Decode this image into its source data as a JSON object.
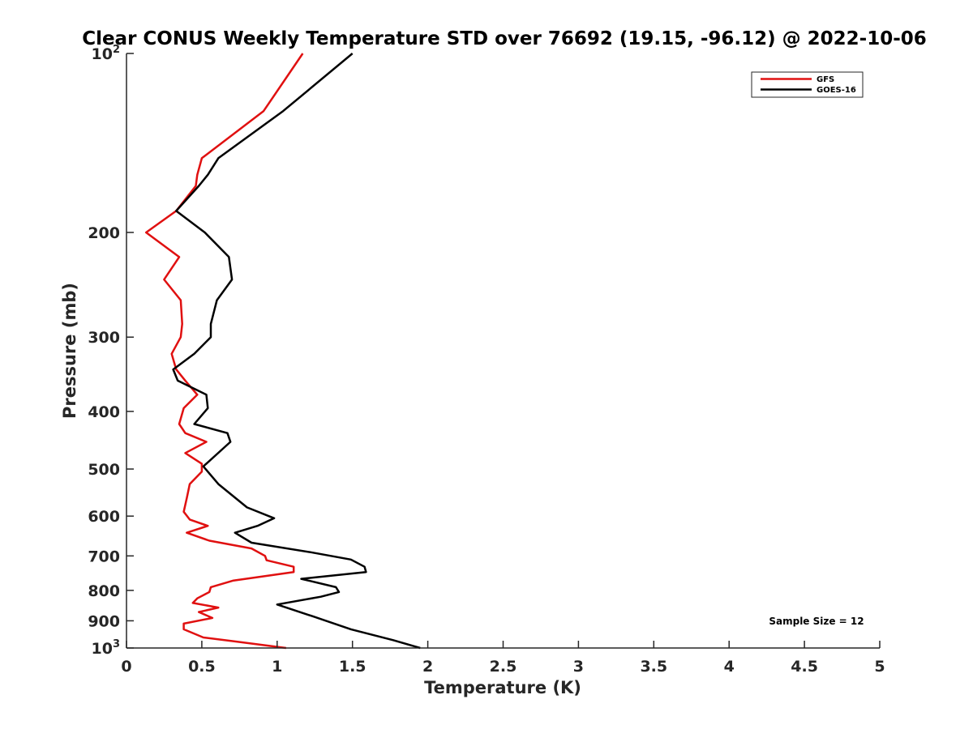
{
  "chart_data": {
    "type": "line",
    "title": "Clear CONUS Weekly Temperature STD over 76692 (19.15, -96.12) @ 2022-10-06",
    "xlabel": "Temperature (K)",
    "ylabel": "Pressure (mb)",
    "xlim": [
      0,
      5
    ],
    "ylim": [
      100,
      1000
    ],
    "yscale": "log",
    "y_reversed": true,
    "grid": false,
    "legend_position": "top-right",
    "x_ticks": [
      {
        "value": 0,
        "label": "0"
      },
      {
        "value": 0.5,
        "label": "0.5"
      },
      {
        "value": 1,
        "label": "1"
      },
      {
        "value": 1.5,
        "label": "1.5"
      },
      {
        "value": 2,
        "label": "2"
      },
      {
        "value": 2.5,
        "label": "2.5"
      },
      {
        "value": 3,
        "label": "3"
      },
      {
        "value": 3.5,
        "label": "3.5"
      },
      {
        "value": 4,
        "label": "4"
      },
      {
        "value": 4.5,
        "label": "4.5"
      },
      {
        "value": 5,
        "label": "5"
      }
    ],
    "y_ticks": [
      {
        "value": 100,
        "base": "10",
        "exp": "2"
      },
      {
        "value": 200,
        "base": "200",
        "exp": ""
      },
      {
        "value": 300,
        "base": "300",
        "exp": ""
      },
      {
        "value": 400,
        "base": "400",
        "exp": ""
      },
      {
        "value": 500,
        "base": "500",
        "exp": ""
      },
      {
        "value": 600,
        "base": "600",
        "exp": ""
      },
      {
        "value": 700,
        "base": "700",
        "exp": ""
      },
      {
        "value": 800,
        "base": "800",
        "exp": ""
      },
      {
        "value": 900,
        "base": "900",
        "exp": ""
      },
      {
        "value": 1000,
        "base": "10",
        "exp": "3"
      }
    ],
    "annotation": "Sample Size = 12",
    "series": [
      {
        "name": "GFS",
        "color": "#e01010",
        "points": [
          [
            1.17,
            100
          ],
          [
            0.91,
            125
          ],
          [
            0.5,
            150
          ],
          [
            0.47,
            160
          ],
          [
            0.46,
            167
          ],
          [
            0.33,
            184
          ],
          [
            0.13,
            200
          ],
          [
            0.35,
            220
          ],
          [
            0.25,
            240
          ],
          [
            0.36,
            260
          ],
          [
            0.37,
            285
          ],
          [
            0.36,
            300
          ],
          [
            0.3,
            320
          ],
          [
            0.33,
            340
          ],
          [
            0.39,
            355
          ],
          [
            0.47,
            375
          ],
          [
            0.38,
            395
          ],
          [
            0.35,
            420
          ],
          [
            0.39,
            435
          ],
          [
            0.53,
            450
          ],
          [
            0.39,
            470
          ],
          [
            0.5,
            490
          ],
          [
            0.5,
            505
          ],
          [
            0.42,
            530
          ],
          [
            0.4,
            560
          ],
          [
            0.38,
            590
          ],
          [
            0.42,
            608
          ],
          [
            0.54,
            623
          ],
          [
            0.4,
            640
          ],
          [
            0.55,
            660
          ],
          [
            0.83,
            680
          ],
          [
            0.92,
            700
          ],
          [
            0.93,
            712
          ],
          [
            1.11,
            730
          ],
          [
            1.11,
            745
          ],
          [
            0.71,
            770
          ],
          [
            0.56,
            790
          ],
          [
            0.55,
            805
          ],
          [
            0.47,
            825
          ],
          [
            0.44,
            840
          ],
          [
            0.61,
            855
          ],
          [
            0.48,
            870
          ],
          [
            0.57,
            890
          ],
          [
            0.38,
            910
          ],
          [
            0.38,
            930
          ],
          [
            0.51,
            960
          ],
          [
            0.72,
            975
          ],
          [
            1.06,
            1000
          ]
        ]
      },
      {
        "name": "GOES-16",
        "color": "#000000",
        "points": [
          [
            1.5,
            100
          ],
          [
            1.04,
            125
          ],
          [
            0.61,
            150
          ],
          [
            0.54,
            160
          ],
          [
            0.48,
            167
          ],
          [
            0.33,
            184
          ],
          [
            0.52,
            200
          ],
          [
            0.68,
            220
          ],
          [
            0.7,
            240
          ],
          [
            0.6,
            260
          ],
          [
            0.56,
            285
          ],
          [
            0.56,
            300
          ],
          [
            0.45,
            320
          ],
          [
            0.31,
            340
          ],
          [
            0.34,
            355
          ],
          [
            0.53,
            375
          ],
          [
            0.54,
            395
          ],
          [
            0.45,
            420
          ],
          [
            0.67,
            435
          ],
          [
            0.69,
            450
          ],
          [
            0.51,
            495
          ],
          [
            0.61,
            530
          ],
          [
            0.8,
            580
          ],
          [
            0.98,
            605
          ],
          [
            0.87,
            623
          ],
          [
            0.72,
            640
          ],
          [
            0.83,
            665
          ],
          [
            1.22,
            690
          ],
          [
            1.49,
            710
          ],
          [
            1.58,
            730
          ],
          [
            1.59,
            745
          ],
          [
            1.16,
            765
          ],
          [
            1.39,
            790
          ],
          [
            1.41,
            805
          ],
          [
            1.29,
            820
          ],
          [
            1.0,
            845
          ],
          [
            1.24,
            885
          ],
          [
            1.49,
            930
          ],
          [
            1.77,
            970
          ],
          [
            1.95,
            1000
          ]
        ]
      }
    ]
  }
}
